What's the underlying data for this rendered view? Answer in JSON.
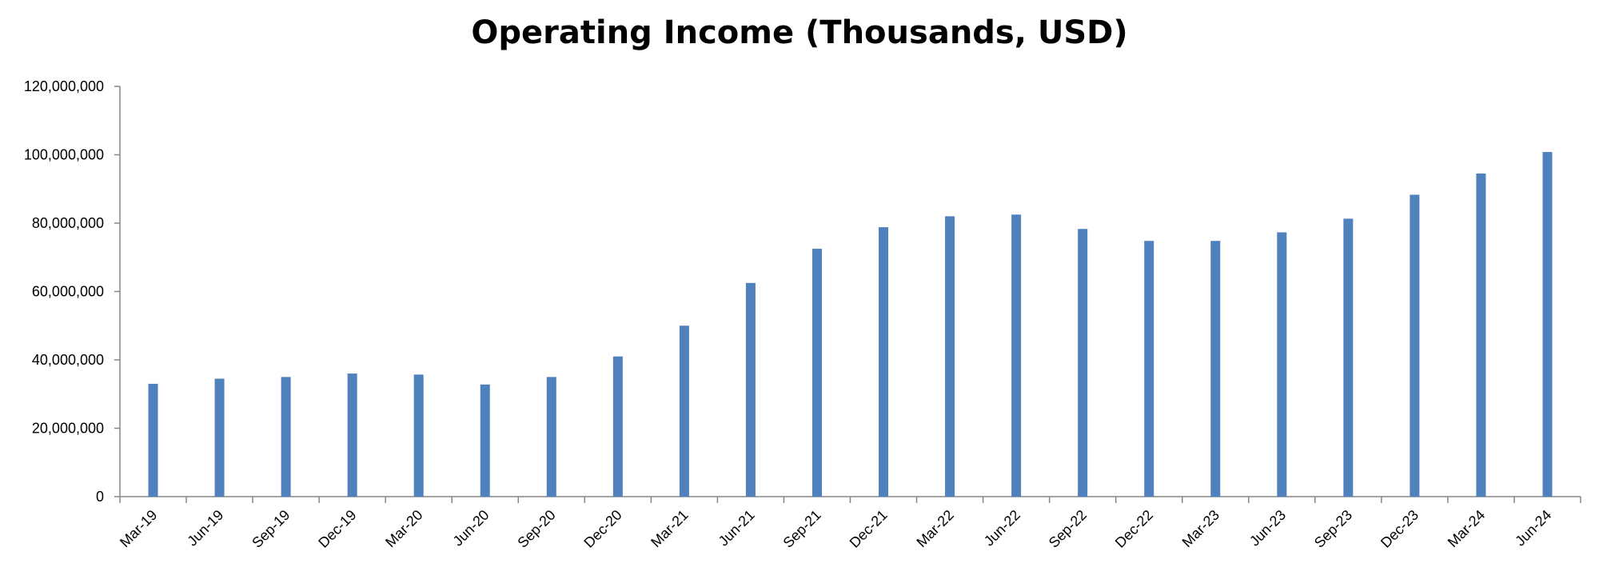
{
  "chart_data": {
    "type": "bar",
    "title": "Operating Income (Thousands, USD)",
    "xlabel": "",
    "ylabel": "",
    "ylim": [
      0,
      120000000
    ],
    "yticks": [
      "0",
      "20,000,000",
      "40,000,000",
      "60,000,000",
      "80,000,000",
      "100,000,000",
      "120,000,000"
    ],
    "ytick_values": [
      0,
      20000000,
      40000000,
      60000000,
      80000000,
      100000000,
      120000000
    ],
    "grid": false,
    "bar_color": "#4F81BD",
    "categories": [
      "Mar-19",
      "Jun-19",
      "Sep-19",
      "Dec-19",
      "Mar-20",
      "Jun-20",
      "Sep-20",
      "Dec-20",
      "Mar-21",
      "Jun-21",
      "Sep-21",
      "Dec-21",
      "Mar-22",
      "Jun-22",
      "Sep-22",
      "Dec-22",
      "Mar-23",
      "Jun-23",
      "Sep-23",
      "Dec-23",
      "Mar-24",
      "Jun-24"
    ],
    "values": [
      33000000,
      34500000,
      35000000,
      36000000,
      35700000,
      32800000,
      35000000,
      41000000,
      50000000,
      62500000,
      72500000,
      78800000,
      82000000,
      82500000,
      78300000,
      74800000,
      74800000,
      77300000,
      81300000,
      88300000,
      94500000,
      100800000
    ]
  }
}
